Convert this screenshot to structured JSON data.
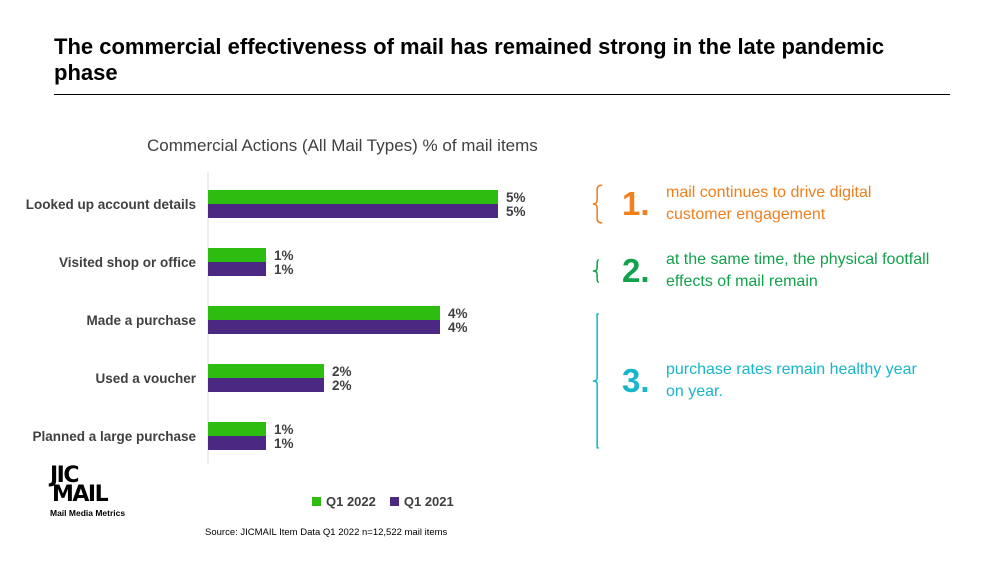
{
  "header": {
    "title": "The commercial effectiveness of mail has remained strong in the late pandemic phase"
  },
  "chart_data": {
    "type": "bar",
    "orientation": "horizontal",
    "title": "Commercial Actions (All Mail Types) % of mail items",
    "categories": [
      "Looked up account details",
      "Visited shop or office",
      "Made a purchase",
      "Used a voucher",
      "Planned a large purchase"
    ],
    "series": [
      {
        "name": "Q1 2022",
        "color": "#2DBD10",
        "values": [
          5,
          1,
          4,
          2,
          1
        ]
      },
      {
        "name": "Q1 2021",
        "color": "#4B2882",
        "values": [
          5,
          1,
          4,
          2,
          1
        ]
      }
    ],
    "value_suffix": "%",
    "xlim": [
      0,
      5.5
    ],
    "legend_position": "bottom",
    "grid": false
  },
  "insights": [
    {
      "number": "1.",
      "text": "mail continues to drive digital customer engagement",
      "color": "#F07F1E"
    },
    {
      "number": "2.",
      "text": "at the same time, the physical footfall effects of mail remain",
      "color": "#12A24B"
    },
    {
      "number": "3.",
      "text": "purchase rates remain healthy year on year.",
      "color": "#18B6C8"
    }
  ],
  "footer": {
    "source": "Source: JICMAIL Item Data Q1 2022 n=12,522 mail items"
  },
  "logo": {
    "line1": "JIC",
    "line2": "MAIL",
    "tagline": "Mail Media Metrics"
  }
}
